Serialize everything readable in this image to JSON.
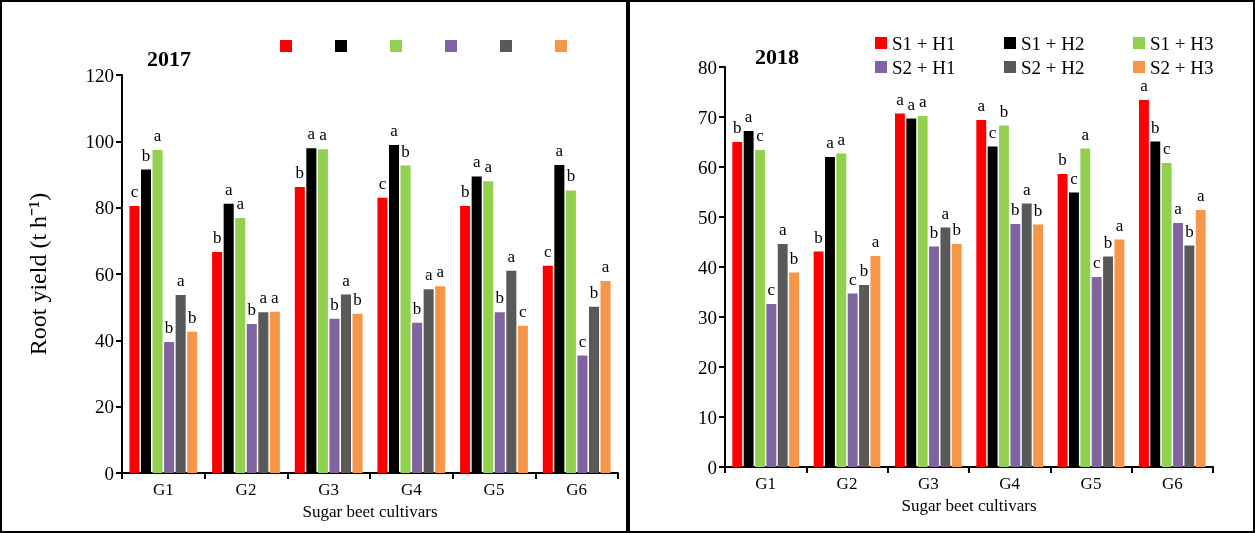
{
  "chart_data": [
    {
      "type": "bar",
      "title": "2017",
      "xlabel": "Sugar beet cultivars",
      "ylabel": "Root yield (t h⁻¹)",
      "categories": [
        "G1",
        "G2",
        "G3",
        "G4",
        "G5",
        "G6"
      ],
      "ylim": [
        0,
        120
      ],
      "yticks": [
        0,
        20,
        40,
        60,
        80,
        100,
        120
      ],
      "grid": false,
      "legend": "top",
      "series": [
        {
          "color": "#ff0000",
          "values": [
            80.5,
            66.6,
            86.2,
            83.0,
            80.5,
            62.5
          ],
          "value_labels": [
            "c",
            "b",
            "b",
            "c",
            "b",
            "c"
          ]
        },
        {
          "color": "#000000",
          "values": [
            91.5,
            81.2,
            97.9,
            98.9,
            89.4,
            92.9
          ],
          "value_labels": [
            "b",
            "a",
            "a",
            "a",
            "a",
            "a"
          ]
        },
        {
          "color": "#92d050",
          "values": [
            97.4,
            76.9,
            97.6,
            92.7,
            88.0,
            85.2
          ],
          "value_labels": [
            "a",
            "a",
            "a",
            "b",
            "a",
            "b"
          ]
        },
        {
          "color": "#8064a2",
          "values": [
            39.5,
            44.9,
            46.5,
            45.3,
            48.5,
            35.4
          ],
          "value_labels": [
            "b",
            "b",
            "b",
            "b",
            "b",
            "c"
          ]
        },
        {
          "color": "#595959",
          "values": [
            53.7,
            48.5,
            53.8,
            55.4,
            61.0,
            50.1
          ],
          "value_labels": [
            "a",
            "a",
            "a",
            "a",
            "a",
            "b"
          ]
        },
        {
          "color": "#f79646",
          "values": [
            42.6,
            48.6,
            48.0,
            56.3,
            44.4,
            57.9
          ],
          "value_labels": [
            "b",
            "a",
            "b",
            "a",
            "c",
            "a"
          ]
        }
      ]
    },
    {
      "type": "bar",
      "title": "2018",
      "xlabel": "Sugar beet cultivars",
      "categories": [
        "G1",
        "G2",
        "G3",
        "G4",
        "G5",
        "G6"
      ],
      "ylim": [
        0,
        80
      ],
      "yticks": [
        0,
        10,
        20,
        30,
        40,
        50,
        60,
        70,
        80
      ],
      "grid": false,
      "legend": "top right",
      "series": [
        {
          "name": "S1 + H1",
          "color": "#ff0000",
          "values": [
            65.0,
            43.1,
            70.7,
            69.4,
            58.6,
            73.4
          ],
          "value_labels": [
            "b",
            "b",
            "a",
            "a",
            "b",
            "a"
          ]
        },
        {
          "name": "S1 + H2",
          "color": "#000000",
          "values": [
            67.2,
            62.0,
            69.7,
            64.1,
            54.9,
            65.1
          ],
          "value_labels": [
            "a",
            "a",
            "a",
            "c",
            "c",
            "b"
          ]
        },
        {
          "name": "S1 + H3",
          "color": "#92d050",
          "values": [
            63.4,
            62.7,
            70.2,
            68.3,
            63.7,
            60.8
          ],
          "value_labels": [
            "c",
            "a",
            "a",
            "b",
            "a",
            "c"
          ]
        },
        {
          "name": "S2 + H1",
          "color": "#8064a2",
          "values": [
            32.6,
            34.7,
            44.1,
            48.6,
            38.0,
            48.8
          ],
          "value_labels": [
            "c",
            "c",
            "b",
            "b",
            "c",
            "a"
          ]
        },
        {
          "name": "S2 + H2",
          "color": "#595959",
          "values": [
            44.6,
            36.4,
            47.9,
            52.7,
            42.1,
            44.3
          ],
          "value_labels": [
            "a",
            "b",
            "a",
            "a",
            "b",
            "b"
          ]
        },
        {
          "name": "S2 + H3",
          "color": "#f79646",
          "values": [
            38.9,
            42.2,
            44.6,
            48.5,
            45.5,
            51.4
          ],
          "value_labels": [
            "b",
            "a",
            "b",
            "b",
            "a",
            "a"
          ]
        }
      ]
    }
  ]
}
